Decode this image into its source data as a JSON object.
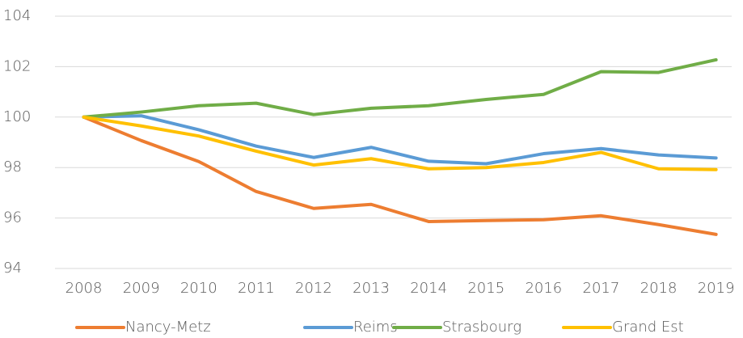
{
  "chart_data": {
    "type": "line",
    "categories": [
      "2008",
      "2009",
      "2010",
      "2011",
      "2012",
      "2013",
      "2014",
      "2015",
      "2016",
      "2017",
      "2018",
      "2019"
    ],
    "series": [
      {
        "name": "Nancy-Metz",
        "color": "#ED7D31",
        "values": [
          100,
          99.07,
          98.24,
          97.05,
          96.38,
          96.54,
          95.86,
          95.9,
          95.93,
          96.09,
          95.74,
          95.35
        ]
      },
      {
        "name": "Reims",
        "color": "#5B9BD5",
        "values": [
          100,
          100.05,
          99.5,
          98.85,
          98.4,
          98.8,
          98.25,
          98.15,
          98.55,
          98.75,
          98.5,
          98.38
        ]
      },
      {
        "name": "Strasbourg",
        "color": "#70AD47",
        "values": [
          100,
          100.2,
          100.45,
          100.55,
          100.1,
          100.35,
          100.45,
          100.7,
          100.9,
          101.8,
          101.77,
          102.27
        ]
      },
      {
        "name": "Grand Est",
        "color": "#FFC000",
        "values": [
          100,
          99.65,
          99.25,
          98.65,
          98.1,
          98.35,
          97.95,
          98.0,
          98.2,
          98.6,
          97.95,
          97.92
        ]
      }
    ],
    "ylim": [
      94,
      104
    ],
    "yticks": [
      94,
      96,
      98,
      100,
      102,
      104
    ],
    "grid": true,
    "legend": "bottom"
  }
}
